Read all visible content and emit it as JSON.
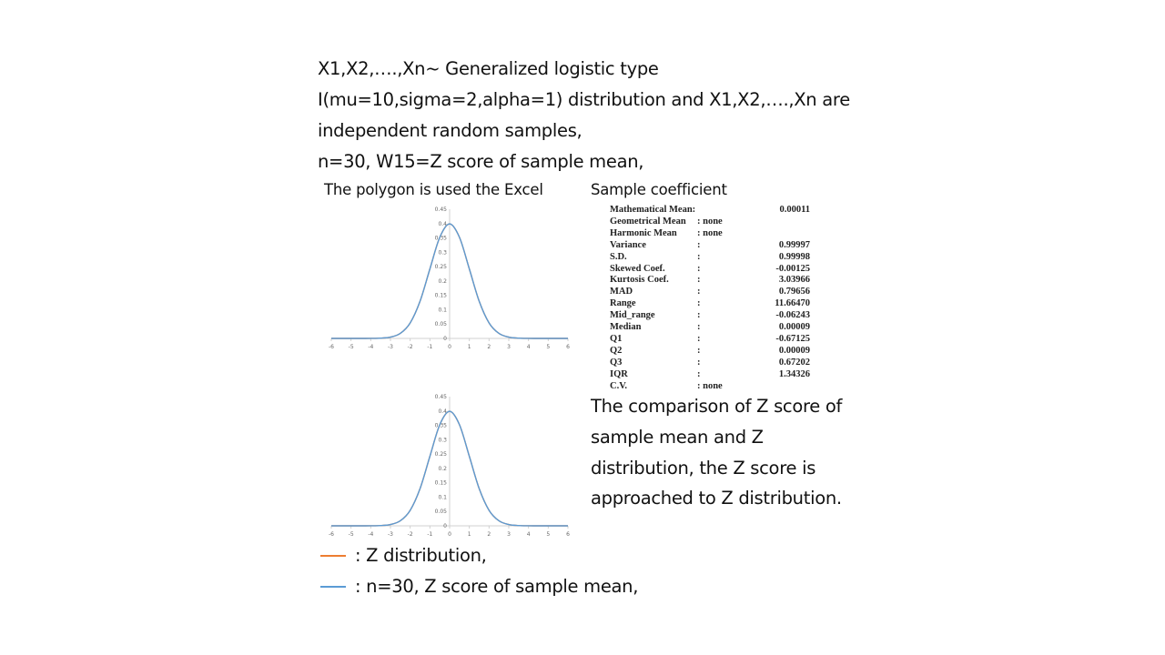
{
  "header": {
    "lines": [
      "X1,X2,….,Xn~ Generalized logistic type",
      "I(mu=10,sigma=2,alpha=1) distribution and X1,X2,….,Xn are",
      "independent random samples,",
      "n=30, W15=Z score of sample mean,"
    ]
  },
  "left_caption": "The polygon is used the Excel",
  "right_caption": "Sample coefficient",
  "stats": [
    {
      "label": "Mathematical Mean:",
      "colon": "",
      "value": "0.00011"
    },
    {
      "label": "Geometrical Mean",
      "colon": ": none",
      "value": ""
    },
    {
      "label": "Harmonic Mean",
      "colon": ": none",
      "value": ""
    },
    {
      "label": "Variance",
      "colon": ":",
      "value": "0.99997"
    },
    {
      "label": "S.D.",
      "colon": ":",
      "value": "0.99998"
    },
    {
      "label": "Skewed Coef.",
      "colon": ":",
      "value": "-0.00125"
    },
    {
      "label": "Kurtosis Coef.",
      "colon": ":",
      "value": "3.03966"
    },
    {
      "label": "MAD",
      "colon": ":",
      "value": "0.79656"
    },
    {
      "label": "Range",
      "colon": ":",
      "value": "11.66470"
    },
    {
      "label": "Mid_range",
      "colon": ":",
      "value": "-0.06243"
    },
    {
      "label": "Median",
      "colon": ":",
      "value": "0.00009"
    },
    {
      "label": "Q1",
      "colon": ":",
      "value": "-0.67125"
    },
    {
      "label": "Q2",
      "colon": ":",
      "value": "0.00009"
    },
    {
      "label": "Q3",
      "colon": ":",
      "value": "0.67202"
    },
    {
      "label": "IQR",
      "colon": ":",
      "value": "1.34326"
    },
    {
      "label": "C.V.",
      "colon": ": none",
      "value": ""
    }
  ],
  "comparison_text": [
    "The comparison of Z score of",
    "sample mean and Z",
    "distribution, the Z score is",
    "approached to Z distribution."
  ],
  "legend": [
    {
      "label": ": Z distribution,",
      "color": "#ED7D31"
    },
    {
      "label": ":   n=30, Z score of sample mean,",
      "color": "#5B9BD5"
    }
  ],
  "chart_data": [
    {
      "type": "line",
      "xlim": [
        -6,
        6
      ],
      "ylim": [
        0,
        0.45
      ],
      "x_ticks": [
        -6,
        -5,
        -4,
        -3,
        -2,
        -1,
        0,
        1,
        2,
        3,
        4,
        5,
        6
      ],
      "y_ticks": [
        0,
        0.05,
        0.1,
        0.15,
        0.2,
        0.25,
        0.3,
        0.35,
        0.4,
        0.45
      ],
      "grid": false,
      "series": [
        {
          "color": "#ED7D31",
          "x": [
            -6,
            -5.5,
            -5,
            -4.5,
            -4,
            -3.5,
            -3,
            -2.5,
            -2,
            -1.5,
            -1,
            -0.5,
            0,
            0.5,
            1,
            1.5,
            2,
            2.5,
            3,
            3.5,
            4,
            4.5,
            5,
            5.5,
            6
          ],
          "values": [
            0,
            0,
            0,
            0,
            0.0001,
            0.0009,
            0.0044,
            0.0175,
            0.054,
            0.1295,
            0.242,
            0.3521,
            0.3989,
            0.3521,
            0.242,
            0.1295,
            0.054,
            0.0175,
            0.0044,
            0.0009,
            0.0001,
            0,
            0,
            0,
            0
          ]
        },
        {
          "color": "#5B9BD5",
          "x": [
            -6,
            -5.5,
            -5,
            -4.5,
            -4,
            -3.5,
            -3,
            -2.5,
            -2,
            -1.5,
            -1,
            -0.5,
            0,
            0.5,
            1,
            1.5,
            2,
            2.5,
            3,
            3.5,
            4,
            4.5,
            5,
            5.5,
            6
          ],
          "values": [
            0,
            0,
            0,
            0,
            0.0001,
            0.0009,
            0.0044,
            0.0175,
            0.054,
            0.1295,
            0.242,
            0.3521,
            0.3989,
            0.3521,
            0.242,
            0.1295,
            0.054,
            0.0175,
            0.0044,
            0.0009,
            0.0001,
            0,
            0,
            0,
            0
          ]
        }
      ]
    },
    {
      "type": "line",
      "xlim": [
        -6,
        6
      ],
      "ylim": [
        0,
        0.45
      ],
      "x_ticks": [
        -6,
        -5,
        -4,
        -3,
        -2,
        -1,
        0,
        1,
        2,
        3,
        4,
        5,
        6
      ],
      "y_ticks": [
        0,
        0.05,
        0.1,
        0.15,
        0.2,
        0.25,
        0.3,
        0.35,
        0.4,
        0.45
      ],
      "grid": false,
      "series": [
        {
          "color": "#ED7D31",
          "x": [
            -6,
            -5.5,
            -5,
            -4.5,
            -4,
            -3.5,
            -3,
            -2.5,
            -2,
            -1.5,
            -1,
            -0.5,
            0,
            0.5,
            1,
            1.5,
            2,
            2.5,
            3,
            3.5,
            4,
            4.5,
            5,
            5.5,
            6
          ],
          "values": [
            0,
            0,
            0,
            0,
            0.0001,
            0.0009,
            0.0044,
            0.0175,
            0.054,
            0.1295,
            0.242,
            0.3521,
            0.3989,
            0.3521,
            0.242,
            0.1295,
            0.054,
            0.0175,
            0.0044,
            0.0009,
            0.0001,
            0,
            0,
            0,
            0
          ]
        },
        {
          "color": "#5B9BD5",
          "x": [
            -6,
            -5.5,
            -5,
            -4.5,
            -4,
            -3.5,
            -3,
            -2.5,
            -2,
            -1.5,
            -1,
            -0.5,
            0,
            0.5,
            1,
            1.5,
            2,
            2.5,
            3,
            3.5,
            4,
            4.5,
            5,
            5.5,
            6
          ],
          "values": [
            0,
            0,
            0,
            0,
            0.0001,
            0.0009,
            0.0044,
            0.0175,
            0.054,
            0.1295,
            0.242,
            0.3521,
            0.3989,
            0.3521,
            0.242,
            0.1295,
            0.054,
            0.0175,
            0.0044,
            0.0009,
            0.0001,
            0,
            0,
            0,
            0
          ]
        }
      ]
    }
  ]
}
